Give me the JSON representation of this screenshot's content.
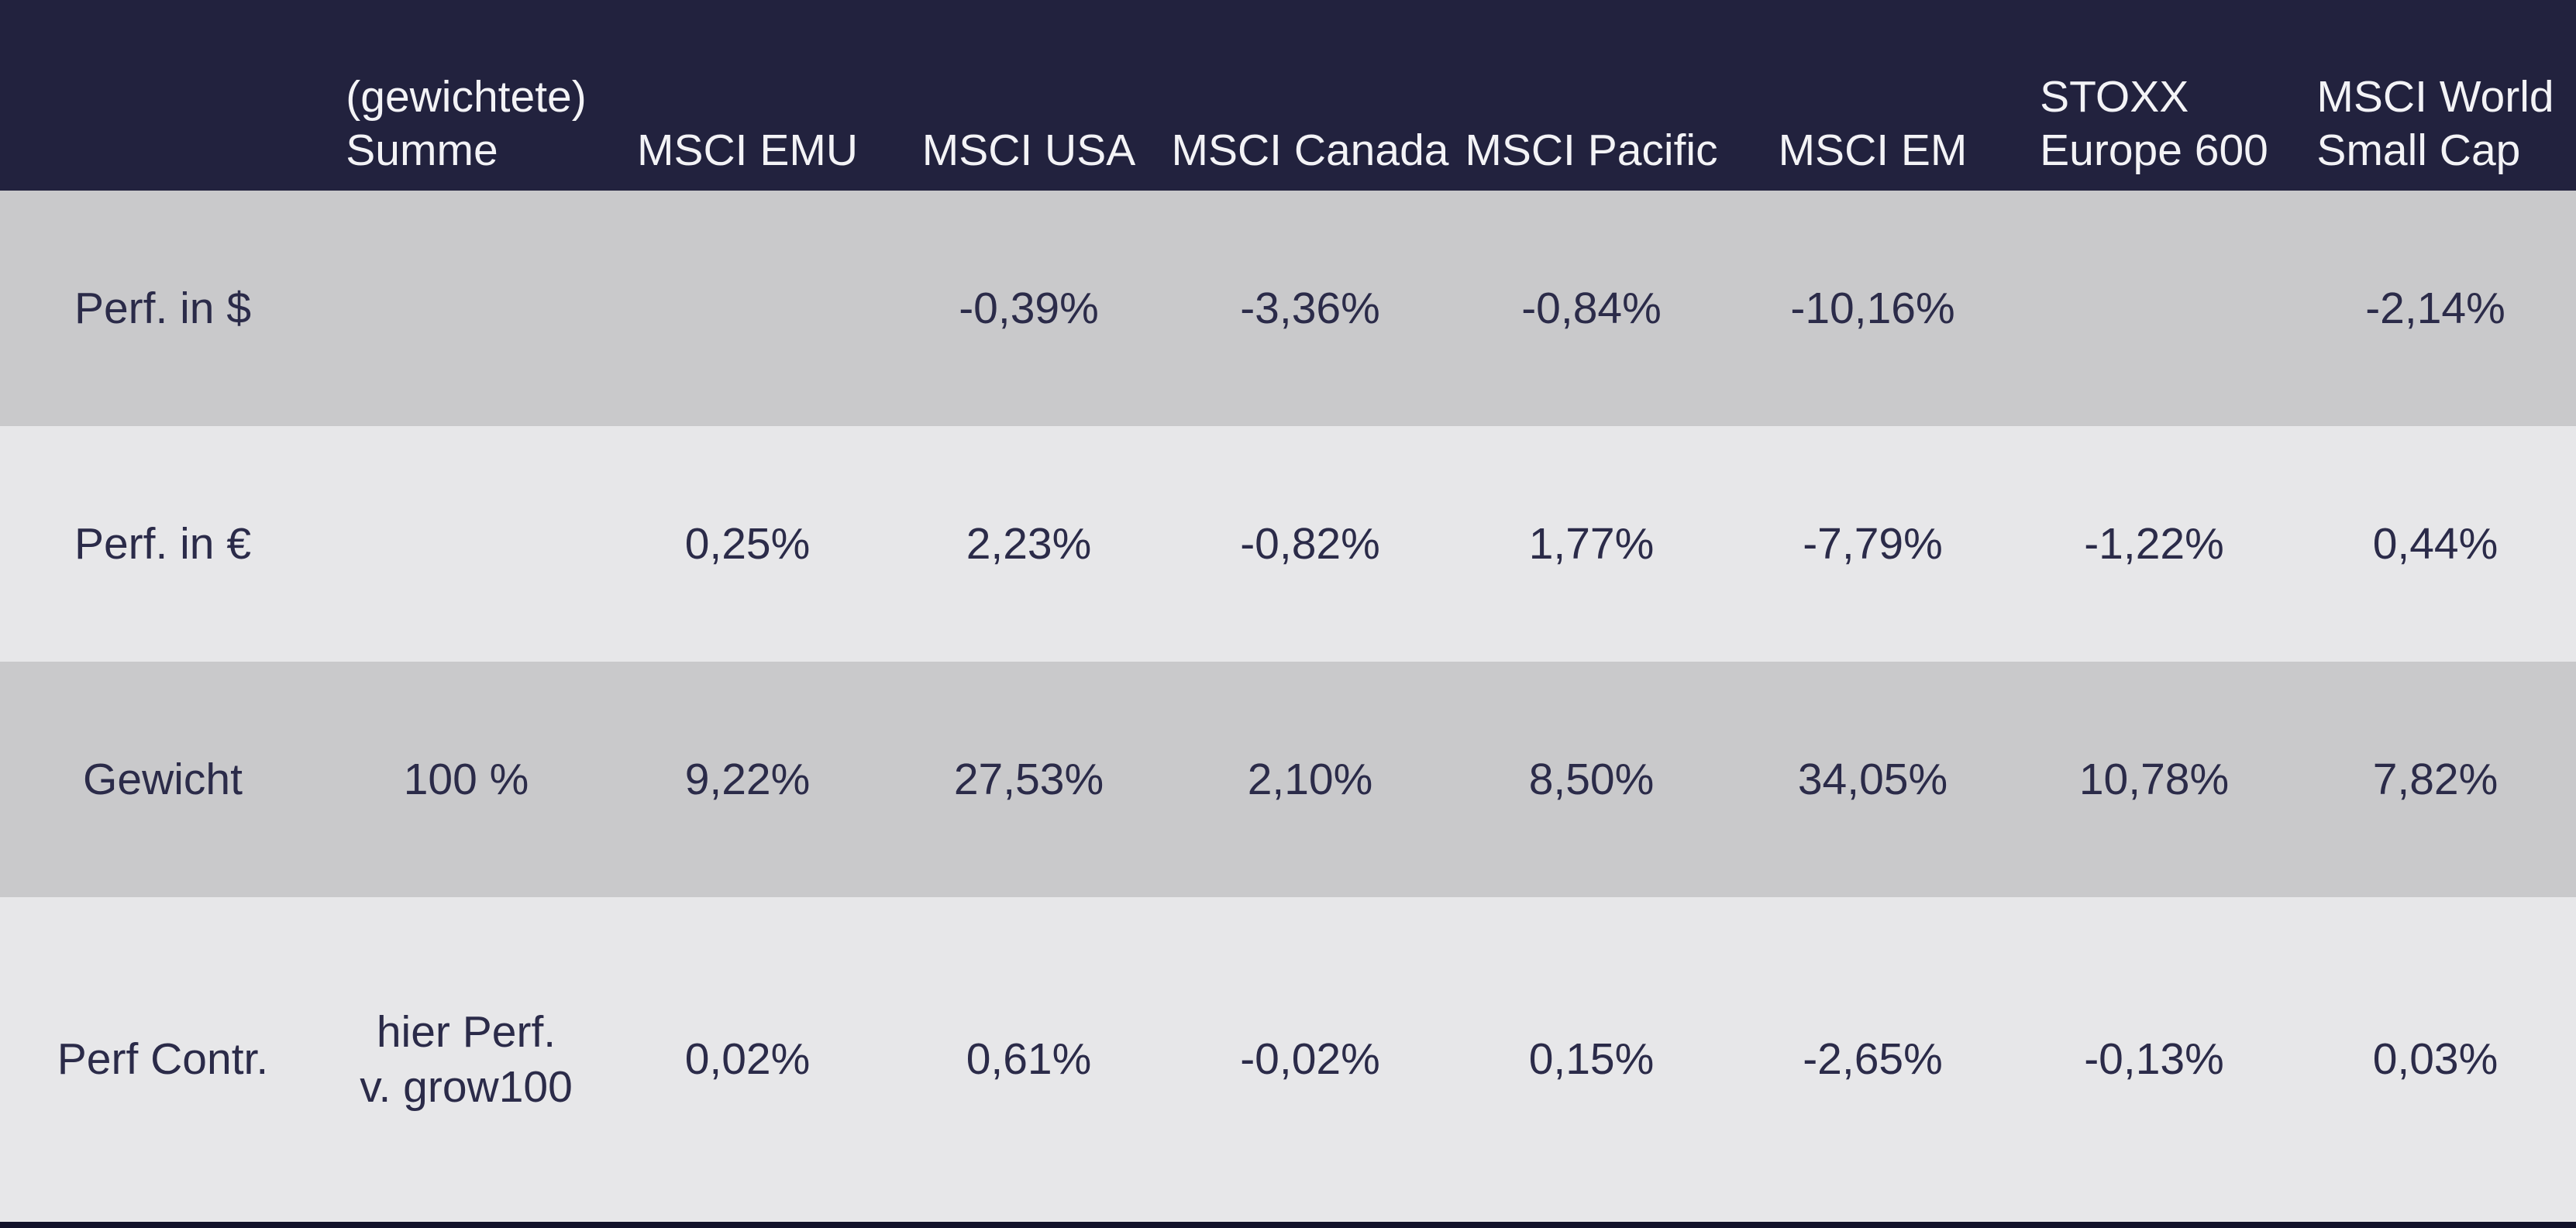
{
  "table": {
    "columns": [
      [
        "(gewichtete)",
        "Summe"
      ],
      [
        "MSCI EMU"
      ],
      [
        "MSCI USA"
      ],
      [
        "MSCI Canada"
      ],
      [
        "MSCI Pacific"
      ],
      [
        "MSCI EM"
      ],
      [
        "STOXX",
        "Europe 600"
      ],
      [
        "MSCI World",
        "Small Cap"
      ]
    ],
    "rows": [
      {
        "label": "Perf. in $",
        "values": [
          "",
          "",
          "-0,39%",
          "-3,36%",
          "-0,84%",
          "-10,16%",
          "",
          "-2,14%"
        ]
      },
      {
        "label": "Perf. in €",
        "values": [
          "",
          "0,25%",
          "2,23%",
          "-0,82%",
          "1,77%",
          "-7,79%",
          "-1,22%",
          "0,44%"
        ]
      },
      {
        "label": "Gewicht",
        "values": [
          "100 %",
          "9,22%",
          "27,53%",
          "2,10%",
          "8,50%",
          "34,05%",
          "10,78%",
          "7,82%"
        ]
      },
      {
        "label": "Perf Contr.",
        "values": [
          [
            "hier Perf.",
            "v. grow100"
          ],
          "0,02%",
          "0,61%",
          "-0,02%",
          "0,15%",
          "-2,65%",
          "-0,13%",
          "0,03%"
        ]
      }
    ]
  },
  "colors": {
    "header_background": "#22223e",
    "header_text": "#f3f3f6",
    "row_odd_background": "#c9c9cb",
    "row_even_background": "#e7e7e9",
    "cell_text": "#2b2b49",
    "bottom_bar": "#12122a"
  }
}
